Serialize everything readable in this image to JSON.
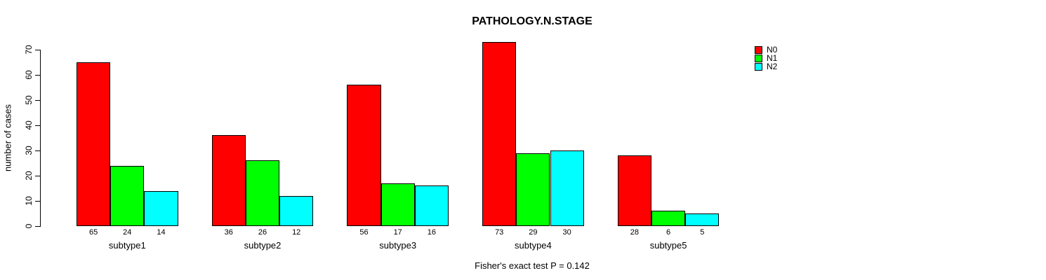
{
  "chart_data": {
    "type": "bar",
    "title": "PATHOLOGY.N.STAGE",
    "ylabel": "number of cases",
    "xlabel": "",
    "categories": [
      "subtype1",
      "subtype2",
      "subtype3",
      "subtype4",
      "subtype5"
    ],
    "series": [
      {
        "name": "N0",
        "color": "#ff0000",
        "values": [
          65,
          36,
          56,
          73,
          28
        ]
      },
      {
        "name": "N1",
        "color": "#00ff00",
        "values": [
          24,
          26,
          17,
          29,
          6
        ]
      },
      {
        "name": "N2",
        "color": "#00ffff",
        "values": [
          14,
          12,
          16,
          30,
          5
        ]
      }
    ],
    "ylim": [
      0,
      70
    ],
    "yticks": [
      0,
      10,
      20,
      30,
      40,
      50,
      60,
      70
    ],
    "bar_value_labels": true,
    "grid": false,
    "legend_position": "top-right",
    "annotation": "Fisher's exact test P = 0.142"
  }
}
